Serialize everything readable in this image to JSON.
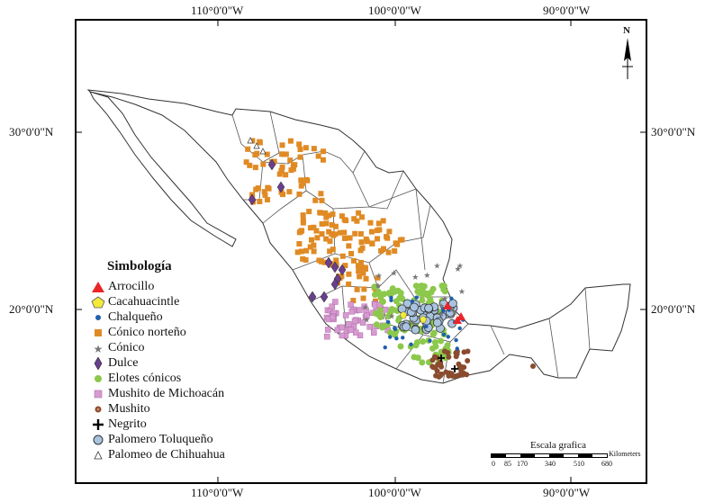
{
  "axes": {
    "top": [
      "110°0'0''W",
      "100°0'0''W",
      "90°0'0''W"
    ],
    "bottom": [
      "110°0'0''W",
      "100°0'0''W",
      "90°0'0''W"
    ],
    "left": [
      "30°0'0''N",
      "20°0'0''N"
    ],
    "right": [
      "30°0'0''N",
      "20°0'0''N"
    ]
  },
  "legend": {
    "title": "Simbología",
    "items": [
      {
        "label": "Arrocillo",
        "symbol": "triangle",
        "color": "#e8262a"
      },
      {
        "label": "Cacahuacintle",
        "symbol": "pentagon",
        "color": "#f3ea3a"
      },
      {
        "label": "Chalqueño",
        "symbol": "dot",
        "color": "#1f5fae"
      },
      {
        "label": "Cónico norteño",
        "symbol": "square",
        "color": "#e08a24"
      },
      {
        "label": "Cónico",
        "symbol": "star",
        "color": "#777777"
      },
      {
        "label": "Dulce",
        "symbol": "diamond",
        "color": "#6a3f8e"
      },
      {
        "label": "Elotes cónicos",
        "symbol": "circle",
        "color": "#8cc84b"
      },
      {
        "label": "Mushito de Michoacán",
        "symbol": "pinksquare",
        "color": "#d79ad0"
      },
      {
        "label": "Mushito",
        "symbol": "browndot",
        "color": "#8a4b2e"
      },
      {
        "label": "Negrito",
        "symbol": "cross",
        "color": "#000000"
      },
      {
        "label": "Palomero Toluqueño",
        "symbol": "bigcircle",
        "color": "#a9c4e0"
      },
      {
        "label": "Palomeo de Chihuahua",
        "symbol": "smalltri",
        "color": "#ffffff"
      }
    ]
  },
  "scale": {
    "title": "Escala grafica",
    "unit": "Kilometers",
    "ticks": [
      "0",
      "85",
      "170",
      "340",
      "510",
      "680"
    ]
  },
  "north": "N"
}
